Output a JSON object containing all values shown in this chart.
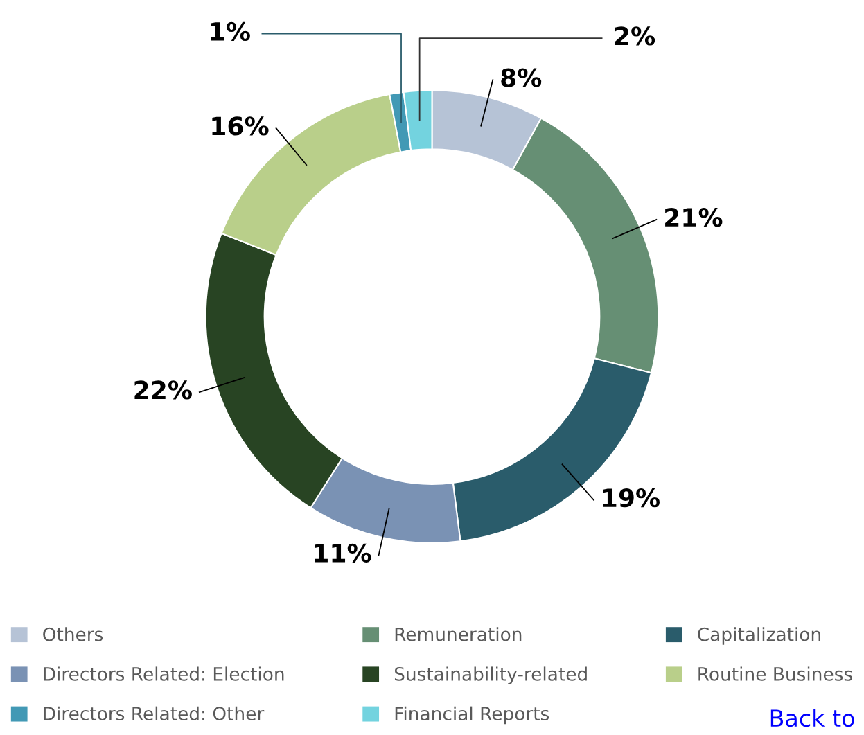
{
  "chart_data": {
    "type": "donut",
    "categories": [
      "Others",
      "Remuneration",
      "Capitalization",
      "Directors Related: Election",
      "Sustainability-related",
      "Routine Business",
      "Directors Related: Other",
      "Financial Reports"
    ],
    "values": [
      8,
      21,
      19,
      11,
      22,
      16,
      1,
      2
    ],
    "colors": [
      "#b6c3d6",
      "#668f74",
      "#2a5c6b",
      "#7a92b4",
      "#284423",
      "#b9cf8a",
      "#4299b5",
      "#73d3df"
    ],
    "value_labels": [
      "8%",
      "21%",
      "19%",
      "11%",
      "22%",
      "16%",
      "1%",
      "2%"
    ],
    "legend": "bottom",
    "annotations": [
      "Back to"
    ]
  }
}
